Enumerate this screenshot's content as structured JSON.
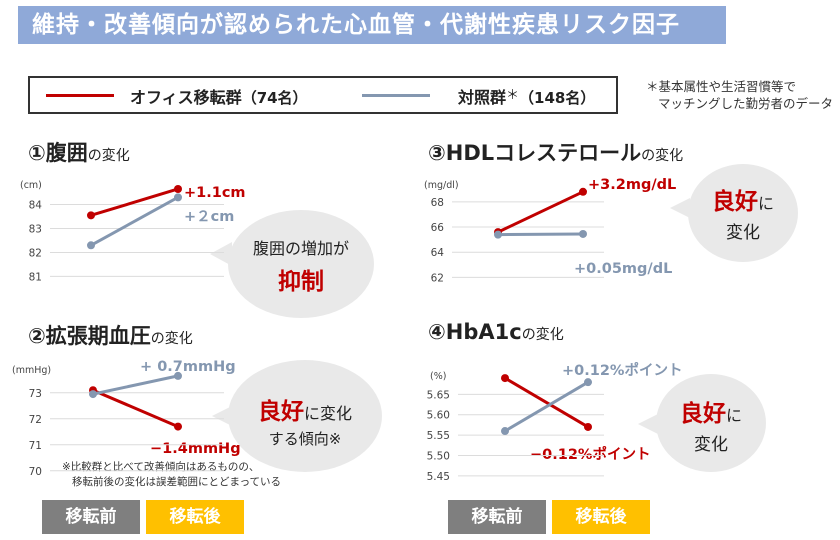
{
  "header": {
    "title": "維持・改善傾向が認められた心血管・代謝性疾患リスク因子"
  },
  "legend": {
    "office_label": "オフィス移転群",
    "office_n": "（74名）",
    "control_label": "対照群",
    "control_mark": "＊",
    "control_n": "（148名）",
    "office_color": "#c00000",
    "control_color": "#8497b0"
  },
  "footnote": {
    "line1": "＊基本属性や生活習慣等で",
    "line2": "マッチングした勤労者のデータ"
  },
  "panels": {
    "waist": {
      "num": "①",
      "name": "腹囲",
      "suffix": "の変化",
      "unit": "(cm)",
      "office_delta": "+1.1cm",
      "control_delta": "+２cm",
      "bubble_line1": "腹囲の増加が",
      "bubble_line2": "抑制"
    },
    "hdl": {
      "num": "③",
      "name": "HDLコレステロール",
      "suffix": "の変化",
      "unit": "(mg/dl)",
      "office_delta": "+3.2mg/dL",
      "control_delta": "+0.05mg/dL",
      "bubble_line1": "良好",
      "bubble_line1b": "に",
      "bubble_line2": "変化"
    },
    "dbp": {
      "num": "②",
      "name": "拡張期血圧",
      "suffix": "の変化",
      "unit": "(mmHg)",
      "office_delta": "−1.4mmHg",
      "control_delta": "+ 0.7mmHg",
      "bubble_line1": "良好",
      "bubble_line1b": "に変化",
      "bubble_line2": "する傾向※"
    },
    "hba1c": {
      "num": "④",
      "name": "HbA1c",
      "suffix": "の変化",
      "unit": "(%)",
      "office_delta": "−0.12%ポイント",
      "control_delta": "+0.12%ポイント",
      "bubble_line1": "良好",
      "bubble_line1b": "に",
      "bubble_line2": "変化"
    }
  },
  "note": {
    "line1": "※比較群と比べて改善傾向はあるものの、",
    "line2": "移転前後の変化は誤差範囲にとどまっている"
  },
  "xaxis": {
    "before": "移転前",
    "after": "移転後",
    "before_color": "#7f7f7f",
    "after_color": "#ffc000"
  },
  "chart_data": [
    {
      "type": "line",
      "title": "腹囲の変化",
      "ylabel": "(cm)",
      "categories": [
        "移転前",
        "移転後"
      ],
      "yticks": [
        81,
        82,
        83,
        84
      ],
      "ylim": [
        80.6,
        84.9
      ],
      "series": [
        {
          "name": "オフィス移転群",
          "values": [
            83.55,
            84.65
          ]
        },
        {
          "name": "対照群",
          "values": [
            82.3,
            84.3
          ]
        }
      ]
    },
    {
      "type": "line",
      "title": "HDLコレステロールの変化",
      "ylabel": "(mg/dl)",
      "categories": [
        "移転前",
        "移転後"
      ],
      "yticks": [
        62,
        64,
        66,
        68
      ],
      "ylim": [
        61,
        69.5
      ],
      "series": [
        {
          "name": "オフィス移転群",
          "values": [
            65.6,
            68.8
          ]
        },
        {
          "name": "対照群",
          "values": [
            65.4,
            65.45
          ]
        }
      ]
    },
    {
      "type": "line",
      "title": "拡張期血圧の変化",
      "ylabel": "(mmHg)",
      "categories": [
        "移転前",
        "移転後"
      ],
      "yticks": [
        70,
        71,
        72,
        73
      ],
      "ylim": [
        69.8,
        73.8
      ],
      "series": [
        {
          "name": "オフィス移転群",
          "values": [
            73.1,
            71.7
          ]
        },
        {
          "name": "対照群",
          "values": [
            72.95,
            73.65
          ]
        }
      ]
    },
    {
      "type": "line",
      "title": "HbA1cの変化",
      "ylabel": "(%)",
      "categories": [
        "移転前",
        "移転後"
      ],
      "yticks": [
        5.45,
        5.5,
        5.55,
        5.6,
        5.65
      ],
      "ylim": [
        5.43,
        5.7
      ],
      "series": [
        {
          "name": "オフィス移転群",
          "values": [
            5.69,
            5.57
          ]
        },
        {
          "name": "対照群",
          "values": [
            5.56,
            5.68
          ]
        }
      ]
    }
  ]
}
